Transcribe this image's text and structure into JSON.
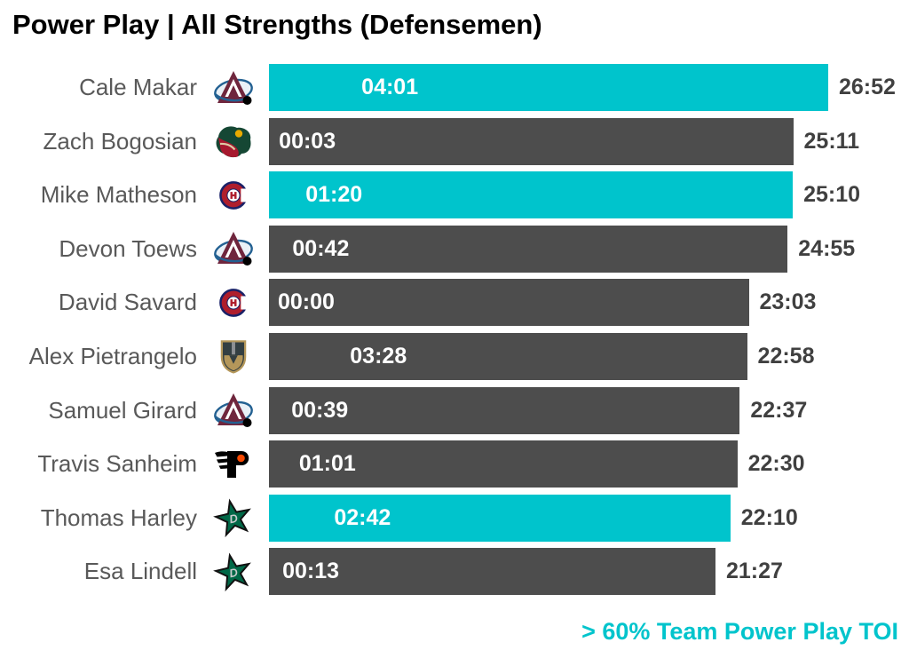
{
  "title": "Power Play | All Strengths (Defensemen)",
  "legend": {
    "label": "> 60% Team Power Play TOI"
  },
  "colors": {
    "highlight": "#00C4CC",
    "bar_default": "#4D4D4D",
    "value_text": "#404040",
    "name_text": "#595959",
    "inner_label_text": "#FFFFFF",
    "title_text": "#000000"
  },
  "chart_data": {
    "type": "bar",
    "orientation": "horizontal",
    "title": "Power Play | All Strengths (Defensemen)",
    "bar_length_metric": "All Strengths TOI (mm:ss)",
    "inner_label_metric": "Power Play TOI (mm:ss)",
    "highlight_rule": "> 60% Team Power Play TOI",
    "x_range_seconds": [
      0,
      1612
    ],
    "rows": [
      {
        "player": "Cale Makar",
        "team": "colorado-avalanche",
        "pp_toi": "04:01",
        "toi": "26:52",
        "toi_seconds": 1612,
        "pp_seconds": 241,
        "highlighted": true
      },
      {
        "player": "Zach Bogosian",
        "team": "minnesota-wild",
        "pp_toi": "00:03",
        "toi": "25:11",
        "toi_seconds": 1511,
        "pp_seconds": 3,
        "highlighted": false
      },
      {
        "player": "Mike Matheson",
        "team": "montreal-canadiens",
        "pp_toi": "01:20",
        "toi": "25:10",
        "toi_seconds": 1510,
        "pp_seconds": 80,
        "highlighted": true
      },
      {
        "player": "Devon Toews",
        "team": "colorado-avalanche",
        "pp_toi": "00:42",
        "toi": "24:55",
        "toi_seconds": 1495,
        "pp_seconds": 42,
        "highlighted": false
      },
      {
        "player": "David Savard",
        "team": "montreal-canadiens",
        "pp_toi": "00:00",
        "toi": "23:03",
        "toi_seconds": 1383,
        "pp_seconds": 0,
        "highlighted": false
      },
      {
        "player": "Alex Pietrangelo",
        "team": "vegas-golden-knights",
        "pp_toi": "03:28",
        "toi": "22:58",
        "toi_seconds": 1378,
        "pp_seconds": 208,
        "highlighted": false
      },
      {
        "player": "Samuel Girard",
        "team": "colorado-avalanche",
        "pp_toi": "00:39",
        "toi": "22:37",
        "toi_seconds": 1357,
        "pp_seconds": 39,
        "highlighted": false
      },
      {
        "player": "Travis Sanheim",
        "team": "philadelphia-flyers",
        "pp_toi": "01:01",
        "toi": "22:30",
        "toi_seconds": 1350,
        "pp_seconds": 61,
        "highlighted": false
      },
      {
        "player": "Thomas Harley",
        "team": "dallas-stars",
        "pp_toi": "02:42",
        "toi": "22:10",
        "toi_seconds": 1330,
        "pp_seconds": 162,
        "highlighted": true
      },
      {
        "player": "Esa Lindell",
        "team": "dallas-stars",
        "pp_toi": "00:13",
        "toi": "21:27",
        "toi_seconds": 1287,
        "pp_seconds": 13,
        "highlighted": false
      }
    ]
  }
}
